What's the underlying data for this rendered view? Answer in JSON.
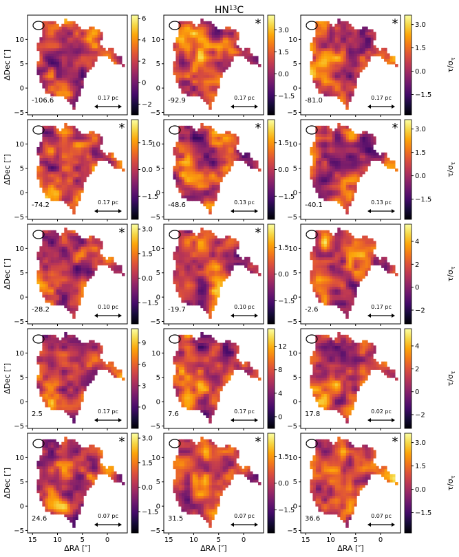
{
  "figure": {
    "title_main": "HN",
    "title_sup": "13",
    "title_end": "C"
  },
  "axes_text": {
    "ylabel": "ΔDec [″]",
    "xlabel": "ΔRA [″]",
    "cbar_label_main": "τ/σ",
    "cbar_label_sub": "τ"
  },
  "chart_data": {
    "type": "heatmap",
    "description_free": true,
    "colormap": "inferno",
    "grid": false,
    "x_axis": {
      "label": "ΔRA [″]",
      "range": [
        16,
        -4
      ],
      "inverted": true,
      "ticks": [
        15,
        10,
        5,
        0
      ],
      "tick_labels": [
        "15",
        "10",
        "5",
        "0"
      ]
    },
    "y_axis": {
      "label": "ΔDec [″]",
      "range": [
        -5.5,
        15
      ],
      "ticks": [
        -5,
        0,
        5,
        10
      ],
      "tick_labels": [
        "−5",
        "0",
        "5",
        "10"
      ]
    },
    "panels": [
      {
        "velocity": "-106.6",
        "scale": "0.17 pc",
        "star": false,
        "cbar_range": [
          -3,
          6.3
        ],
        "cbar_ticks": [
          -2,
          0,
          2,
          4,
          6
        ],
        "cbar_tick_labels": [
          "−2",
          "0",
          "2",
          "4",
          "6"
        ],
        "cbar_label": false
      },
      {
        "velocity": "-92.9",
        "scale": "0.17 pc",
        "star": true,
        "cbar_range": [
          -2.8,
          4.0
        ],
        "cbar_ticks": [
          -1.5,
          0.0,
          1.5,
          3.0
        ],
        "cbar_tick_labels": [
          "−1.5",
          "0.0",
          "1.5",
          "3.0"
        ],
        "cbar_label": false
      },
      {
        "velocity": "-81.0",
        "scale": "0.17 pc",
        "star": true,
        "cbar_range": [
          -2.8,
          3.6
        ],
        "cbar_ticks": [
          -1.5,
          0.0,
          1.5,
          3.0
        ],
        "cbar_tick_labels": [
          "−1.5",
          "0.0",
          "1.5",
          "3.0"
        ],
        "cbar_label": true
      },
      {
        "velocity": "-74.2",
        "scale": "0.17 pc",
        "star": true,
        "cbar_range": [
          -2.8,
          2.8
        ],
        "cbar_ticks": [
          -1.5,
          0.0,
          1.5
        ],
        "cbar_tick_labels": [
          "−1.5",
          "0.0",
          "1.5"
        ],
        "cbar_label": false
      },
      {
        "velocity": "-48.6",
        "scale": "0.13 pc",
        "star": true,
        "cbar_range": [
          -2.8,
          2.8
        ],
        "cbar_ticks": [
          -1.5,
          0.0,
          1.5
        ],
        "cbar_tick_labels": [
          "−1.5",
          "0.0",
          "1.5"
        ],
        "cbar_label": false
      },
      {
        "velocity": "-40.1",
        "scale": "0.13 pc",
        "star": true,
        "cbar_range": [
          -2.8,
          3.6
        ],
        "cbar_ticks": [
          -1.5,
          0.0,
          1.5,
          3.0
        ],
        "cbar_tick_labels": [
          "−1.5",
          "0.0",
          "1.5",
          "3.0"
        ],
        "cbar_label": true
      },
      {
        "velocity": "-28.2",
        "scale": "0.10 pc",
        "star": true,
        "cbar_range": [
          -2.8,
          3.3
        ],
        "cbar_ticks": [
          -1.5,
          0.0,
          1.5,
          3.0
        ],
        "cbar_tick_labels": [
          "−1.5",
          "0.0",
          "1.5",
          "3.0"
        ],
        "cbar_label": false
      },
      {
        "velocity": "-19.7",
        "scale": "0.10 pc",
        "star": true,
        "cbar_range": [
          -2.8,
          2.8
        ],
        "cbar_ticks": [
          -1.5,
          0.0,
          1.5
        ],
        "cbar_tick_labels": [
          "−1.5",
          "0.0",
          "1.5"
        ],
        "cbar_label": false
      },
      {
        "velocity": "-2.6",
        "scale": "0.17 pc",
        "star": false,
        "cbar_range": [
          -3.2,
          5.5
        ],
        "cbar_ticks": [
          -2,
          0,
          2,
          4
        ],
        "cbar_tick_labels": [
          "−2",
          "0",
          "2",
          "4"
        ],
        "cbar_label": true
      },
      {
        "velocity": "2.5",
        "scale": "0.17 pc",
        "star": false,
        "cbar_range": [
          -3.0,
          11.0
        ],
        "cbar_ticks": [
          0,
          3,
          6,
          9
        ],
        "cbar_tick_labels": [
          "0",
          "3",
          "6",
          "9"
        ],
        "cbar_label": false
      },
      {
        "velocity": "7.6",
        "scale": "0.17 pc",
        "star": false,
        "cbar_range": [
          -2.0,
          15.0
        ],
        "cbar_ticks": [
          0,
          4,
          8,
          12
        ],
        "cbar_tick_labels": [
          "0",
          "4",
          "8",
          "12"
        ],
        "cbar_label": false
      },
      {
        "velocity": "17.8",
        "scale": "0.02 pc",
        "star": false,
        "cbar_range": [
          -3.2,
          5.5
        ],
        "cbar_ticks": [
          -2,
          0,
          2,
          4
        ],
        "cbar_tick_labels": [
          "−2",
          "0",
          "2",
          "4"
        ],
        "cbar_label": true
      },
      {
        "velocity": "24.6",
        "scale": "0.07 pc",
        "star": true,
        "cbar_range": [
          -2.8,
          3.3
        ],
        "cbar_ticks": [
          -1.5,
          0.0,
          1.5,
          3.0
        ],
        "cbar_tick_labels": [
          "−1.5",
          "0.0",
          "1.5",
          "3.0"
        ],
        "cbar_label": false
      },
      {
        "velocity": "31.5",
        "scale": "0.07 pc",
        "star": true,
        "cbar_range": [
          -2.8,
          2.8
        ],
        "cbar_ticks": [
          -1.5,
          0.0,
          1.5
        ],
        "cbar_tick_labels": [
          "−1.5",
          "0.0",
          "1.5"
        ],
        "cbar_label": false
      },
      {
        "velocity": "36.6",
        "scale": "0.07 pc",
        "star": true,
        "cbar_range": [
          -2.8,
          3.6
        ],
        "cbar_ticks": [
          -1.5,
          0.0,
          1.5,
          3.0
        ],
        "cbar_tick_labels": [
          "−1.5",
          "0.0",
          "1.5",
          "3.0"
        ],
        "cbar_label": true
      }
    ]
  }
}
